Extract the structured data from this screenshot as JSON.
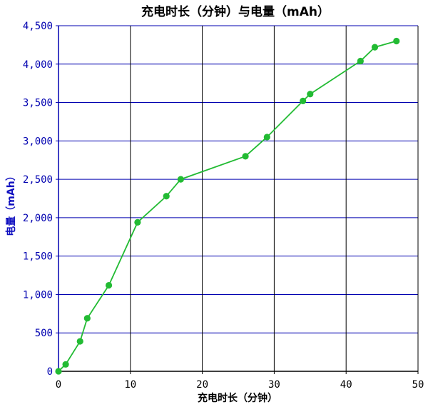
{
  "chart_data": {
    "type": "line",
    "title": "充电时长（分钟）与电量（mAh）",
    "xlabel": "充电时长（分钟）",
    "ylabel": "电量（mAh）",
    "xlim": [
      0,
      50
    ],
    "ylim": [
      0,
      4500
    ],
    "x_ticks": [
      "0",
      "10",
      "20",
      "30",
      "40",
      "50"
    ],
    "y_ticks": [
      "0",
      "500",
      "1,000",
      "1,500",
      "2,000",
      "2,500",
      "3,000",
      "3,500",
      "4,000",
      "4,500"
    ],
    "grid": true,
    "series": [
      {
        "color": "#22bb33",
        "x": [
          0,
          1,
          3,
          4,
          7,
          11,
          15,
          17,
          26,
          29,
          34,
          35,
          42,
          44,
          47
        ],
        "y": [
          0,
          90,
          390,
          690,
          1120,
          1940,
          2280,
          2500,
          2800,
          3050,
          3520,
          3610,
          4040,
          4220,
          4300
        ]
      }
    ]
  },
  "colors": {
    "horizontal_grid": "#0000b0",
    "vertical_grid": "#000000",
    "y_axis": "#0000b0",
    "series_line": "#22bb33"
  }
}
